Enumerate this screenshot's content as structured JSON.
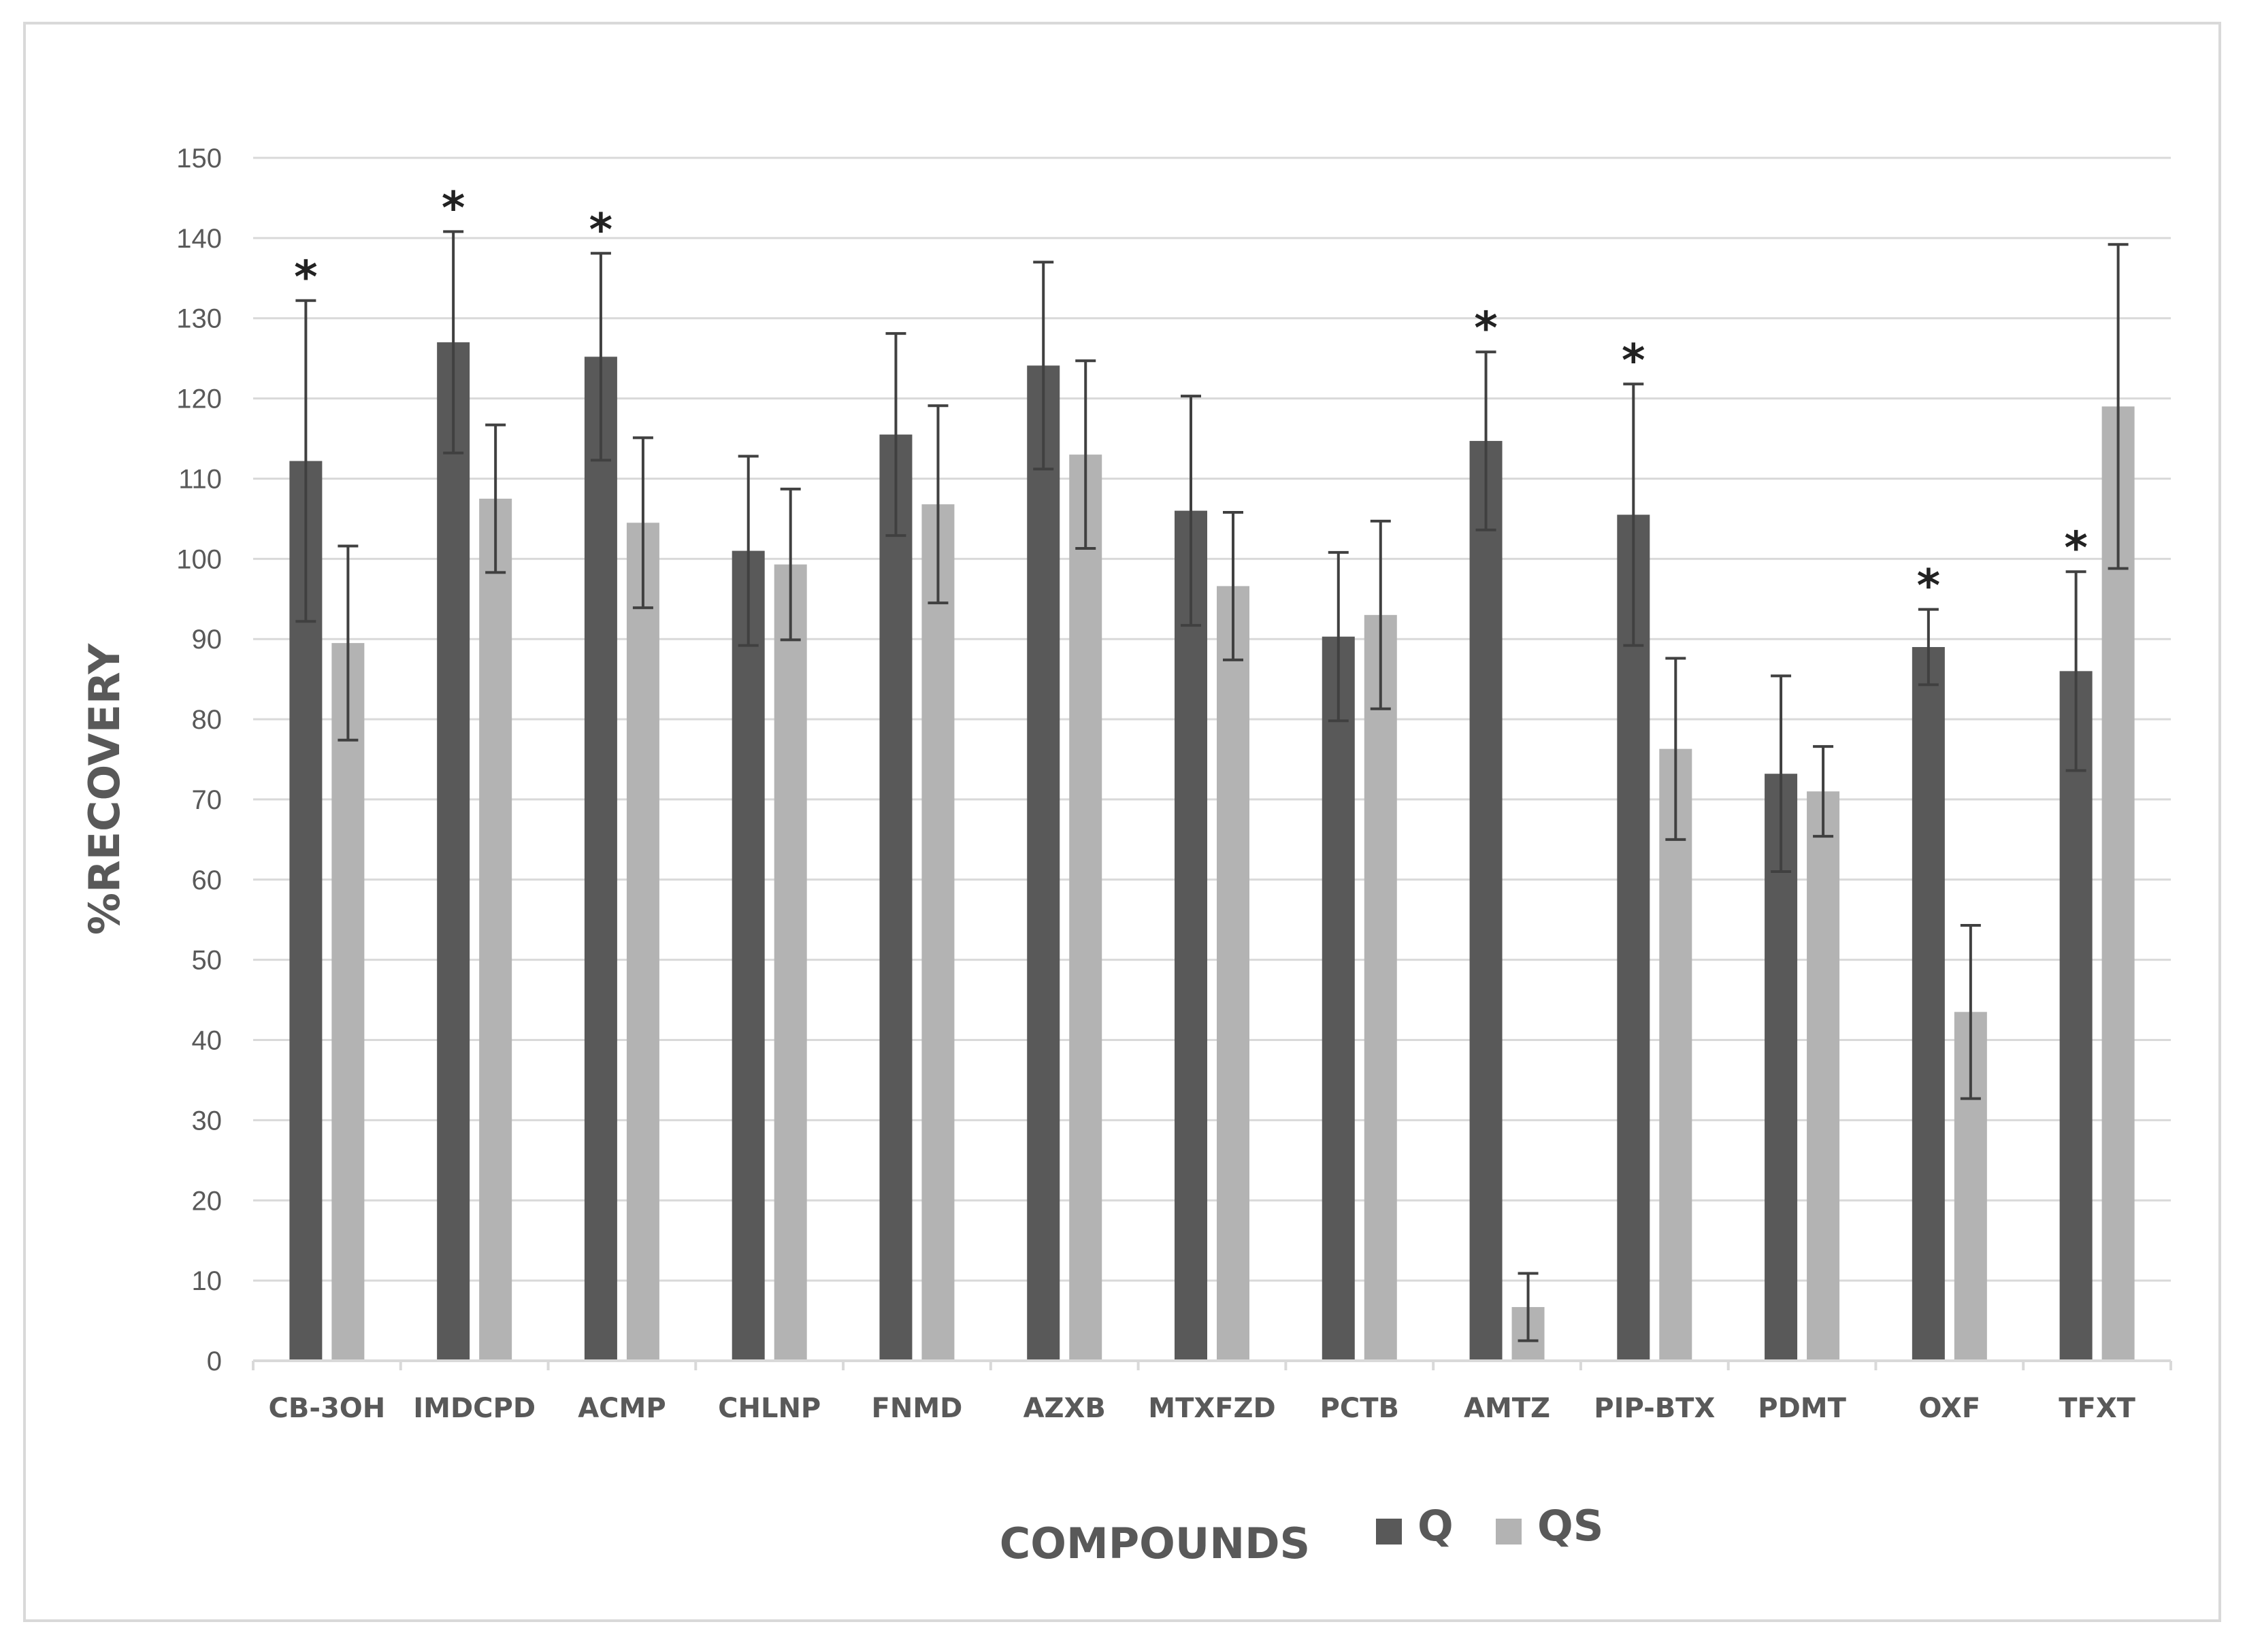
{
  "chart_data": {
    "type": "bar",
    "title": "",
    "xlabel": "COMPOUNDS",
    "ylabel": "%RECOVERY",
    "ylim": [
      0,
      150
    ],
    "yticks": [
      "0",
      "10",
      "20",
      "30",
      "40",
      "50",
      "60",
      "70",
      "80",
      "90",
      "100",
      "110",
      "120",
      "130",
      "140",
      "150"
    ],
    "grid": true,
    "legend_position": "bottom",
    "categories": [
      "CB-3OH",
      "IMDCPD",
      "ACMP",
      "CHLNP",
      "FNMD",
      "AZXB",
      "MTXFZD",
      "PCTB",
      "AMTZ",
      "PIP-BTX",
      "PDMT",
      "OXF",
      "TFXT"
    ],
    "series": [
      {
        "name": "Q",
        "color": "#595959",
        "values": [
          112.2,
          127,
          125.2,
          101,
          115.5,
          124.1,
          106,
          90.3,
          114.7,
          105.5,
          73.2,
          89,
          86
        ],
        "errors": [
          20,
          13.8,
          12.9,
          11.8,
          12.6,
          12.9,
          14.3,
          10.5,
          11.1,
          16.3,
          12.2,
          4.7,
          12.4
        ]
      },
      {
        "name": "QS",
        "color": "#b3b3b3",
        "values": [
          89.5,
          107.5,
          104.5,
          99.3,
          106.8,
          113,
          96.6,
          93,
          6.7,
          76.3,
          71,
          43.5,
          119
        ],
        "errors": [
          12.1,
          9.2,
          10.6,
          9.4,
          12.3,
          11.7,
          9.2,
          11.7,
          4.2,
          11.3,
          5.6,
          10.8,
          20.2
        ]
      }
    ],
    "significance_marker": "*",
    "significant_categories": [
      "CB-3OH",
      "IMDCPD",
      "ACMP",
      "AMTZ",
      "PIP-BTX",
      "OXF",
      "TFXT"
    ],
    "colors": {
      "grid": "#d9d9d9",
      "axis": "#d9d9d9",
      "text": "#595959",
      "errorbar": "#404040",
      "star": "#222222"
    }
  }
}
